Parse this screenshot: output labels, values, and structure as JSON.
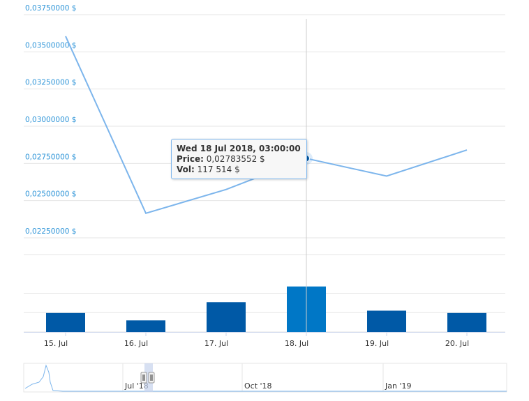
{
  "colors": {
    "price_line": "#7cb5ec",
    "volume_bar": "#0059a6",
    "volume_bar_hover": "#0077c6",
    "axis_label": "#2f95d8",
    "grid": "#e6e6e6",
    "crosshair": "#cccccc"
  },
  "chart_data": {
    "type": "line",
    "x": [
      "15. Jul",
      "16. Jul",
      "17. Jul",
      "18. Jul",
      "19. Jul",
      "20. Jul"
    ],
    "price": {
      "values": [
        0.03605,
        0.02415,
        0.02575,
        0.02783552,
        0.02665,
        0.0284
      ],
      "ylim": [
        0.0225,
        0.0375
      ],
      "ticks": [
        "0,02250000 $",
        "0,02500000 $",
        "0,02750000 $",
        "0,03000000 $",
        "0,03250000 $",
        "0,03500000 $",
        "0,03750000 $"
      ]
    },
    "volume": {
      "type": "bar",
      "values": [
        49000,
        30000,
        77000,
        117514,
        55000,
        49000
      ],
      "ylim": [
        0,
        200000
      ]
    },
    "x_tick_labels": [
      "15. Jul",
      "16. Jul",
      "17. Jul",
      "18. Jul",
      "19. Jul",
      "20. Jul"
    ],
    "hovered_index": 3,
    "grid": true,
    "navigator": {
      "labels": [
        "Jul '18",
        "Oct '18",
        "Jan '19"
      ]
    }
  },
  "tooltip": {
    "date": "Wed 18 Jul 2018, 03:00:00",
    "price_label": "Price:",
    "price_value": "0,02783552 $",
    "vol_label": "Vol:",
    "vol_value": "117 514 $"
  }
}
